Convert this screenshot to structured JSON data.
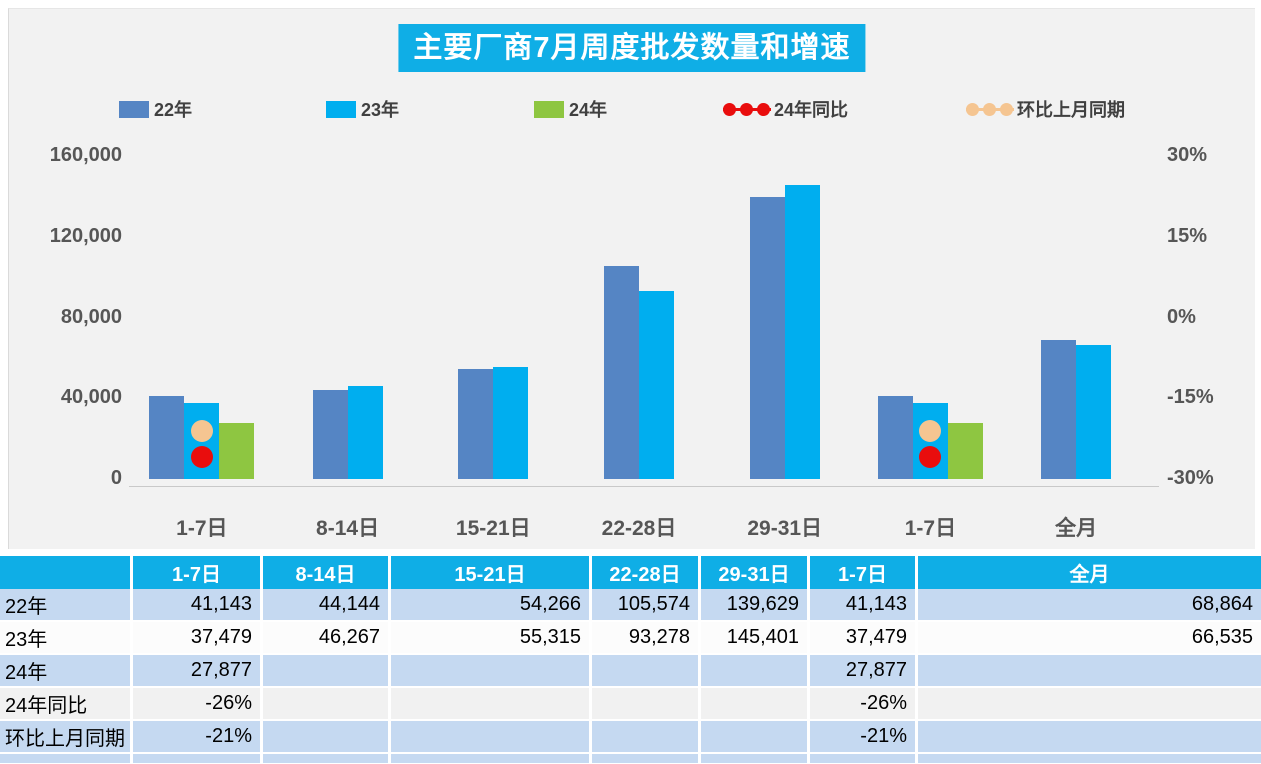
{
  "title": "主要厂商7月周度批发数量和增速",
  "colors": {
    "accent_cyan": "#0FAEE6",
    "bar_2022": "#5585C4",
    "bar_2023": "#00AEEF",
    "bar_2024": "#8EC641",
    "yoy_red": "#E90D0D",
    "mom_tan": "#F5C591",
    "panel_bg": "#F2F2F2",
    "row_blue": "#C5D9F1"
  },
  "legend": [
    {
      "label": "22年",
      "type": "bar",
      "color": "#5585C4"
    },
    {
      "label": "23年",
      "type": "bar",
      "color": "#00AEEF"
    },
    {
      "label": "24年",
      "type": "bar",
      "color": "#8EC641"
    },
    {
      "label": "24年同比",
      "type": "dots",
      "color": "#E90D0D"
    },
    {
      "label": "环比上月同期",
      "type": "dots",
      "color": "#F5C591"
    }
  ],
  "chart_data": {
    "type": "bar",
    "title": "主要厂商7月周度批发数量和增速",
    "categories": [
      "1-7日",
      "8-14日",
      "15-21日",
      "22-28日",
      "29-31日",
      "1-7日",
      "全月"
    ],
    "series": [
      {
        "name": "22年",
        "color": "#5585C4",
        "values": [
          41143,
          44144,
          54266,
          105574,
          139629,
          41143,
          68864
        ]
      },
      {
        "name": "23年",
        "color": "#00AEEF",
        "values": [
          37479,
          46267,
          55315,
          93278,
          145401,
          37479,
          66535
        ]
      },
      {
        "name": "24年",
        "color": "#8EC641",
        "values": [
          27877,
          null,
          null,
          null,
          null,
          27877,
          null
        ]
      }
    ],
    "point_series": [
      {
        "name": "24年同比",
        "color": "#E90D0D",
        "values_pct": [
          -26,
          null,
          null,
          null,
          null,
          -26,
          null
        ]
      },
      {
        "name": "环比上月同期",
        "color": "#F5C591",
        "values_pct": [
          -21,
          null,
          null,
          null,
          null,
          -21,
          null
        ]
      }
    ],
    "left_axis": {
      "min": 0,
      "max": 160000,
      "ticks": [
        "160,000",
        "120,000",
        "80,000",
        "40,000",
        "0"
      ]
    },
    "right_axis": {
      "min": -30,
      "max": 30,
      "ticks": [
        "30%",
        "15%",
        "0%",
        "-15%",
        "-30%"
      ]
    },
    "grid": false,
    "legend_position": "top"
  },
  "table": {
    "header": [
      "",
      "1-7日",
      "8-14日",
      "15-21日",
      "22-28日",
      "29-31日",
      "1-7日",
      "全月"
    ],
    "rows": [
      {
        "label": "22年",
        "bg": "blue",
        "cells": [
          "41,143",
          "44,144",
          "54,266",
          "105,574",
          "139,629",
          "41,143",
          "68,864"
        ]
      },
      {
        "label": "23年",
        "bg": "white",
        "cells": [
          "37,479",
          "46,267",
          "55,315",
          "93,278",
          "145,401",
          "37,479",
          "66,535"
        ]
      },
      {
        "label": "24年",
        "bg": "blue",
        "cells": [
          "27,877",
          "",
          "",
          "",
          "",
          "27,877",
          ""
        ]
      },
      {
        "label": "24年同比",
        "bg": "gray",
        "cells": [
          "-26%",
          "",
          "",
          "",
          "",
          "-26%",
          ""
        ]
      },
      {
        "label": "环比上月同期",
        "bg": "blue",
        "cells": [
          "-21%",
          "",
          "",
          "",
          "",
          "-21%",
          ""
        ]
      }
    ]
  }
}
